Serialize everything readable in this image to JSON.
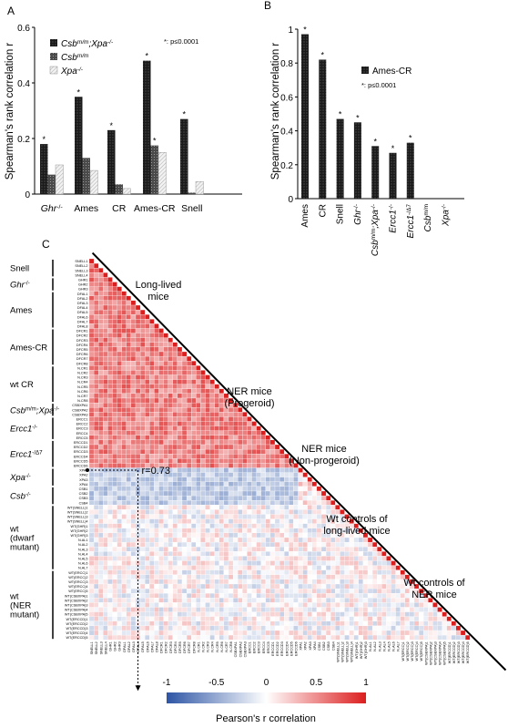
{
  "chart_data": [
    {
      "type": "bar",
      "panel": "A",
      "ylabel": "Spearman's rank correlation r",
      "ylim": [
        0,
        0.6
      ],
      "yticks": [
        "0",
        "0.2",
        "0.4",
        "0.6"
      ],
      "categories": [
        "Ghr-/-",
        "Ames",
        "CR",
        "Ames-CR",
        "Snell"
      ],
      "series": [
        {
          "name": "Csbm/m;Xpa-/-",
          "values": [
            0.18,
            0.35,
            0.23,
            0.48,
            0.27
          ],
          "color": "#1a1a1a"
        },
        {
          "name": "Csbm/m",
          "values": [
            0.07,
            0.13,
            0.035,
            0.175,
            0.005
          ],
          "color": "#555555"
        },
        {
          "name": "Xpa-/-",
          "values": [
            0.105,
            0.085,
            0.02,
            0.15,
            0.045
          ],
          "color": "#e6e6e6"
        }
      ],
      "significant": [
        [
          true,
          false,
          false
        ],
        [
          true,
          false,
          false
        ],
        [
          true,
          false,
          false
        ],
        [
          true,
          true,
          false
        ],
        [
          true,
          false,
          false
        ]
      ],
      "annotation": "*: p≤0.0001"
    },
    {
      "type": "bar",
      "panel": "B",
      "ylabel": "Spearman's rank correlation r",
      "ylim": [
        0,
        1
      ],
      "yticks": [
        "0",
        "0.2",
        "0.4",
        "0.6",
        "0.8",
        "1"
      ],
      "categories": [
        "Ames",
        "CR",
        "Snell",
        "Ghr-/-",
        "Csbm/m;Xpa-/-",
        "Ercc1-/-",
        "Ercc1-/Δ7",
        "Csbm/m",
        "Xpa-/-"
      ],
      "series": [
        {
          "name": "Ames-CR",
          "values": [
            0.97,
            0.82,
            0.47,
            0.45,
            0.31,
            0.27,
            0.33,
            0.0,
            0.0
          ],
          "color": "#1a1a1a"
        }
      ],
      "significant": [
        true,
        true,
        true,
        true,
        true,
        true,
        true,
        false,
        false
      ],
      "annotation": "*: p≤0.0001"
    },
    {
      "type": "heatmap",
      "panel": "C",
      "colorbar_label": "Pearson's r correlation",
      "colorbar_ticks": [
        "-1",
        "-0.5",
        "0",
        "0.5",
        "1"
      ],
      "highlight_label": "r=0.73",
      "groups": [
        {
          "label": "Snell",
          "rows": [
            "SNELL1",
            "SNELL2",
            "SNELL3",
            "SNELL4"
          ]
        },
        {
          "label": "Ghr-/-",
          "rows": [
            "GHR1",
            "GHR2",
            "GHR3"
          ]
        },
        {
          "label": "Ames",
          "rows": [
            "DFAL1",
            "DFAL2",
            "DFAL3",
            "DFAL4",
            "DFAL5",
            "DFAL6",
            "DFAL7",
            "DFAL8"
          ]
        },
        {
          "label": "Ames-CR",
          "rows": [
            "DFCR1",
            "DFCR2",
            "DFCR3",
            "DFCR4",
            "DFCR5",
            "DFCR6",
            "DFCR7",
            "DFCR8"
          ]
        },
        {
          "label": "wt CR",
          "rows": [
            "N.CR1",
            "N.CR2",
            "N.CR3",
            "N.CR4",
            "N.CR5",
            "N.CR6",
            "N.CR7",
            "N.CR8"
          ]
        },
        {
          "label": "Csbm/m;Xpa-/-",
          "rows": [
            "CSBXPA1",
            "CSBXPA2",
            "CSBXPA3"
          ]
        },
        {
          "label": "Ercc1-/-",
          "rows": [
            "ERCC1",
            "ERCC2",
            "ERCC3",
            "ERCC4",
            "ERCC5"
          ]
        },
        {
          "label": "Ercc1-/Δ7",
          "rows": [
            "ERCCD1",
            "ERCCD2",
            "ERCCD3",
            "ERCCD4",
            "ERCCD5",
            "ERCCD6"
          ]
        },
        {
          "label": "Xpa-/-",
          "rows": [
            "XPA1",
            "XPA2",
            "XPA3",
            "XPA4"
          ]
        },
        {
          "label": "Csb-/-",
          "rows": [
            "CSB1",
            "CSB2",
            "CSB3",
            "CSB4"
          ]
        },
        {
          "label": "wt (dwarf mutant)",
          "rows": [
            "WT(SNELL)1",
            "WT(SNELL)2",
            "WT(SNELL)3",
            "WT(SNELL)4",
            "WT(GHR)1",
            "WT(GHR)2",
            "WT(GHR)3",
            "N.AL1",
            "N.AL2",
            "N.AL3",
            "N.AL4",
            "N.AL5",
            "N.AL6",
            "N.AL7"
          ]
        },
        {
          "label": "wt (NER mutant)",
          "rows": [
            "WT(ERCC)1",
            "WT(ERCC)2",
            "WT(ERCC)3",
            "WT(ERCC)4",
            "WT(ERCC)5",
            "WT(CSBXPA)1",
            "WT(CSBXPA)2",
            "WT(CSBXPA)3",
            "WT(CSBXPA)4",
            "WT(CSBXPA)5",
            "WT(ERCCD)1",
            "WT(ERCCD)2",
            "WT(ERCCD)3",
            "WT(ERCCD)4",
            "WT(ERCCD)5"
          ]
        }
      ],
      "triangle_labels": [
        [
          "Long-lived",
          "mice"
        ],
        [
          "NER mice",
          "(Progeroid)"
        ],
        [
          "NER mice",
          "(Non-progeroid)"
        ],
        [
          "Wt controls of",
          "long-lived mice"
        ],
        [
          "Wt controls of",
          "NER mice"
        ]
      ]
    }
  ],
  "panel_labels": [
    "A",
    "B",
    "C"
  ]
}
